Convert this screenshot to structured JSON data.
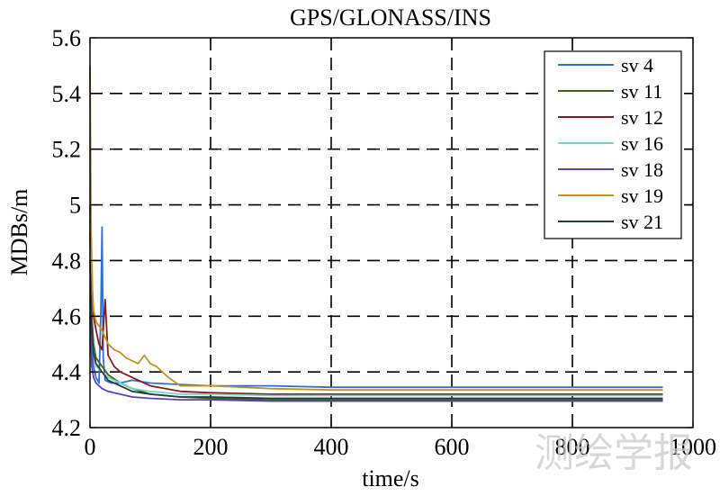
{
  "chart_data": {
    "type": "line",
    "title": "GPS/GLONASS/INS",
    "xlabel": "time/s",
    "ylabel": "MDBs/m",
    "xlim": [
      0,
      1000
    ],
    "ylim": [
      4.2,
      5.6
    ],
    "xticks": [
      0,
      200,
      400,
      600,
      800,
      1000
    ],
    "xtick_labels": [
      "0",
      "200",
      "400",
      "600",
      "800",
      "1000"
    ],
    "yticks": [
      4.2,
      4.4,
      4.6,
      4.8,
      5.0,
      5.2,
      5.4,
      5.6
    ],
    "ytick_labels": [
      "4.2",
      "4.4",
      "4.6",
      "4.8",
      "5",
      "5.2",
      "5.4",
      "5.6"
    ],
    "grid": true,
    "legend_position": "top-right",
    "series": [
      {
        "name": "sv 4",
        "color": "#2f6fd6",
        "x": [
          0,
          3,
          6,
          10,
          15,
          18,
          20,
          22,
          25,
          35,
          50,
          70,
          100,
          150,
          200,
          300,
          400,
          600,
          800,
          950
        ],
        "y": [
          4.95,
          4.5,
          4.42,
          4.38,
          4.36,
          4.62,
          4.92,
          4.45,
          4.37,
          4.36,
          4.36,
          4.37,
          4.36,
          4.355,
          4.35,
          4.35,
          4.345,
          4.345,
          4.345,
          4.345
        ]
      },
      {
        "name": "sv 11",
        "color": "#3a5f1f",
        "x": [
          0,
          3,
          6,
          10,
          20,
          30,
          50,
          70,
          100,
          150,
          200,
          300,
          400,
          600,
          800,
          950
        ],
        "y": [
          4.9,
          4.6,
          4.5,
          4.45,
          4.42,
          4.39,
          4.36,
          4.34,
          4.32,
          4.31,
          4.305,
          4.3,
          4.3,
          4.3,
          4.3,
          4.3
        ]
      },
      {
        "name": "sv 12",
        "color": "#8b1a1a",
        "x": [
          0,
          3,
          6,
          10,
          15,
          20,
          25,
          30,
          40,
          50,
          70,
          100,
          150,
          200,
          300,
          400,
          600,
          800,
          950
        ],
        "y": [
          5.0,
          4.7,
          4.6,
          4.55,
          4.5,
          4.48,
          4.66,
          4.46,
          4.42,
          4.4,
          4.38,
          4.35,
          4.33,
          4.325,
          4.32,
          4.32,
          4.32,
          4.32,
          4.32
        ]
      },
      {
        "name": "sv 16",
        "color": "#6fd6c8",
        "x": [
          0,
          3,
          6,
          10,
          20,
          30,
          50,
          70,
          100,
          150,
          200,
          300,
          400,
          600,
          800,
          950
        ],
        "y": [
          4.85,
          4.55,
          4.48,
          4.42,
          4.4,
          4.38,
          4.36,
          4.34,
          4.33,
          4.32,
          4.32,
          4.315,
          4.315,
          4.315,
          4.315,
          4.315
        ]
      },
      {
        "name": "sv 18",
        "color": "#5b3fc0",
        "x": [
          0,
          3,
          6,
          10,
          20,
          30,
          50,
          70,
          100,
          150,
          200,
          300,
          400,
          600,
          800,
          950
        ],
        "y": [
          4.6,
          4.42,
          4.38,
          4.36,
          4.34,
          4.33,
          4.32,
          4.31,
          4.305,
          4.3,
          4.3,
          4.295,
          4.295,
          4.295,
          4.295,
          4.295
        ]
      },
      {
        "name": "sv 19",
        "color": "#c8901c",
        "x": [
          0,
          2,
          4,
          6,
          10,
          20,
          30,
          40,
          50,
          60,
          70,
          80,
          90,
          100,
          110,
          130,
          150,
          200,
          300,
          400,
          600,
          800,
          950
        ],
        "y": [
          5.5,
          4.9,
          4.7,
          4.62,
          4.58,
          4.55,
          4.5,
          4.48,
          4.47,
          4.45,
          4.44,
          4.43,
          4.46,
          4.43,
          4.42,
          4.38,
          4.35,
          4.35,
          4.34,
          4.335,
          4.335,
          4.335,
          4.335
        ]
      },
      {
        "name": "sv 21",
        "color": "#2b3a3a",
        "x": [
          0,
          3,
          6,
          10,
          20,
          30,
          50,
          70,
          100,
          150,
          200,
          300,
          400,
          600,
          800,
          950
        ],
        "y": [
          4.8,
          4.55,
          4.47,
          4.43,
          4.4,
          4.37,
          4.35,
          4.33,
          4.32,
          4.31,
          4.31,
          4.305,
          4.305,
          4.305,
          4.305,
          4.305
        ]
      }
    ]
  },
  "watermark": "测绘学报"
}
